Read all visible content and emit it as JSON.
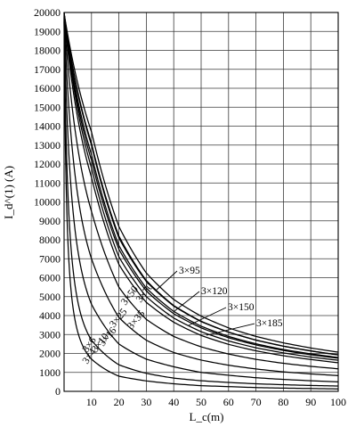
{
  "chart_data": {
    "type": "line",
    "title": "",
    "xlabel": "L_c(m)",
    "ylabel": "I_d^(1) (A)",
    "xlim": [
      0,
      100
    ],
    "ylim": [
      0,
      20000
    ],
    "xticks": [
      10,
      20,
      30,
      40,
      50,
      60,
      70,
      80,
      90,
      100
    ],
    "yticks": [
      0,
      1000,
      2000,
      3000,
      4000,
      5000,
      6000,
      7000,
      8000,
      9000,
      10000,
      11000,
      12000,
      13000,
      14000,
      15000,
      16000,
      17000,
      18000,
      19000,
      20000
    ],
    "grid": true,
    "x": [
      0,
      10,
      20,
      30,
      40,
      50,
      60,
      70,
      80,
      90,
      100
    ],
    "series": [
      {
        "name": "3×4",
        "values": [
          19500,
          1700,
          800,
          550,
          400,
          300,
          250,
          200,
          170,
          150,
          130
        ]
      },
      {
        "name": "3×6",
        "values": [
          19600,
          2700,
          1400,
          950,
          700,
          560,
          470,
          400,
          350,
          310,
          280
        ]
      },
      {
        "name": "3×10",
        "values": [
          19700,
          4600,
          2500,
          1700,
          1300,
          1000,
          850,
          720,
          630,
          560,
          500
        ]
      },
      {
        "name": "3×16",
        "values": [
          19750,
          7000,
          3900,
          2700,
          2050,
          1650,
          1380,
          1180,
          1030,
          920,
          830
        ]
      },
      {
        "name": "3×25",
        "values": [
          19800,
          9500,
          5500,
          3800,
          2900,
          2350,
          1970,
          1690,
          1480,
          1320,
          1190
        ]
      },
      {
        "name": "3×35",
        "values": [
          19850,
          11300,
          6700,
          4700,
          3650,
          2950,
          2480,
          2140,
          1880,
          1680,
          1510
        ]
      },
      {
        "name": "3×50",
        "values": [
          19900,
          12200,
          7500,
          5300,
          4100,
          3350,
          2830,
          2450,
          2160,
          1930,
          1750
        ]
      },
      {
        "name": "3×70",
        "values": [
          19950,
          13000,
          8100,
          5800,
          4500,
          3680,
          3120,
          2700,
          2380,
          2130,
          1920
        ]
      },
      {
        "name": "3×95",
        "values": [
          19970,
          13700,
          8700,
          6250,
          4850,
          3970,
          3350,
          2900,
          2560,
          2290,
          2070
        ]
      },
      {
        "name": "3×120",
        "values": [
          19980,
          13100,
          8200,
          5850,
          4530,
          3700,
          3130,
          2710,
          2390,
          2140,
          1930
        ]
      },
      {
        "name": "3×150",
        "values": [
          19990,
          12500,
          7700,
          5450,
          4220,
          3440,
          2900,
          2510,
          2210,
          1980,
          1790
        ]
      },
      {
        "name": "3×185",
        "values": [
          20000,
          11800,
          7100,
          5000,
          3870,
          3150,
          2660,
          2300,
          2030,
          1810,
          1640
        ]
      }
    ],
    "labels": [
      "3×4",
      "3×6",
      "3×10",
      "3×16",
      "3×25",
      "3×35",
      "3×50",
      "3×70",
      "3×95",
      "3×120",
      "3×150",
      "3×185"
    ]
  }
}
